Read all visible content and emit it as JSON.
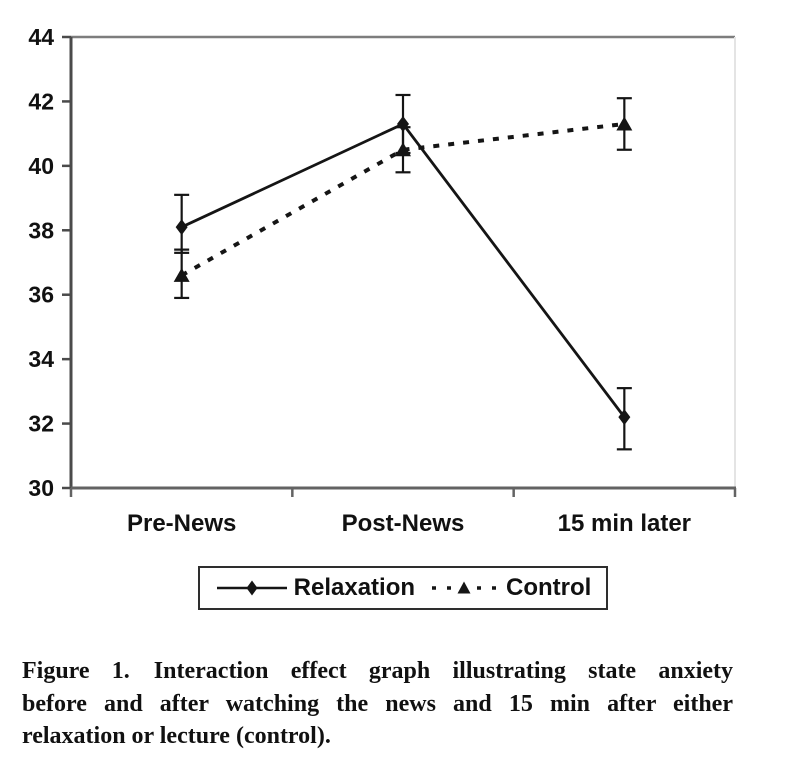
{
  "figure": {
    "caption_lines": [
      "Figure 1. Interaction effect graph illustrating state anxiety",
      "before and after watching the news and 15 min after either",
      "relaxation or lecture (control)."
    ]
  },
  "chart_data": {
    "type": "line",
    "title": "",
    "xlabel": "",
    "ylabel": "",
    "categories": [
      "Pre-News",
      "Post-News",
      "15 min later"
    ],
    "series": [
      {
        "name": "Relaxation",
        "marker": "diamond",
        "line": "solid",
        "values": [
          38.1,
          41.3,
          32.2
        ],
        "error_low": [
          37.3,
          40.4,
          31.2
        ],
        "error_high": [
          39.1,
          42.2,
          33.1
        ]
      },
      {
        "name": "Control",
        "marker": "triangle",
        "line": "dotted",
        "values": [
          36.6,
          40.5,
          41.3
        ],
        "error_low": [
          35.9,
          39.8,
          40.5
        ],
        "error_high": [
          37.4,
          41.2,
          42.1
        ]
      }
    ],
    "ylim": [
      30,
      44
    ],
    "yticks": [
      30,
      32,
      34,
      36,
      38,
      40,
      42,
      44
    ],
    "ytick_step": 2,
    "grid": false,
    "legend_position": "bottom",
    "colors": {
      "data": "#151515",
      "text": "#111111",
      "frame_top": "#7d7d7d",
      "frame_right": "#e4e4e4",
      "frame_left": "#4a4a4a",
      "frame_bottom": "#636363",
      "legend_border": "#2e2e2e",
      "background": "#ffffff"
    }
  }
}
